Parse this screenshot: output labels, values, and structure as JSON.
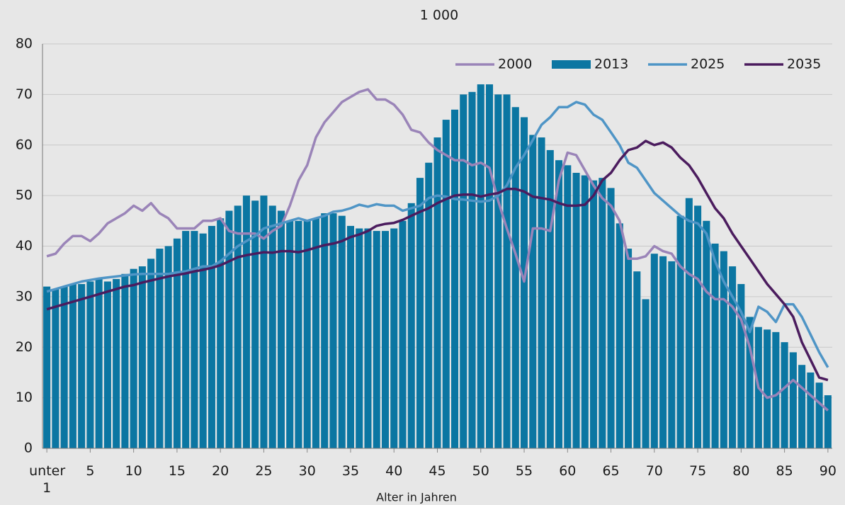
{
  "chart_data": {
    "type": "bar",
    "title": "1 000",
    "x_label": "Alter in Jahren",
    "categories": [
      "unter 1",
      null,
      null,
      null,
      null,
      "5",
      null,
      null,
      null,
      null,
      "10",
      null,
      null,
      null,
      null,
      "15",
      null,
      null,
      null,
      null,
      "20",
      null,
      null,
      null,
      null,
      "25",
      null,
      null,
      null,
      null,
      "30",
      null,
      null,
      null,
      null,
      "35",
      null,
      null,
      null,
      null,
      "40",
      null,
      null,
      null,
      null,
      "45",
      null,
      null,
      null,
      null,
      "50",
      null,
      null,
      null,
      null,
      "55",
      null,
      null,
      null,
      null,
      "60",
      null,
      null,
      null,
      null,
      "65",
      null,
      null,
      null,
      null,
      "70",
      null,
      null,
      null,
      null,
      "75",
      null,
      null,
      null,
      null,
      "80",
      null,
      null,
      null,
      null,
      "85",
      null,
      null,
      null,
      null,
      "90"
    ],
    "series": [
      {
        "name": "2000",
        "type": "line",
        "color": "#9a84b8",
        "values": [
          38,
          38.5,
          40.5,
          42,
          42,
          41,
          42.5,
          44.5,
          45.5,
          46.5,
          48,
          47,
          48.5,
          46.5,
          45.5,
          43.5,
          43.5,
          43.5,
          45,
          45,
          45.5,
          43,
          42.5,
          42.5,
          42.5,
          41.5,
          43,
          44,
          48,
          53,
          56,
          61.5,
          64.5,
          66.5,
          68.5,
          69.5,
          70.5,
          71,
          69,
          69,
          68,
          66,
          63,
          62.5,
          60.5,
          59,
          58,
          57,
          57,
          56,
          56.5,
          55.5,
          49,
          43.5,
          38.5,
          33,
          43.5,
          43.5,
          43,
          53,
          58.5,
          58,
          55,
          52,
          49.5,
          48,
          45,
          37.5,
          37.5,
          38,
          40,
          39,
          38.5,
          36,
          34.5,
          33.5,
          31,
          29.5,
          29.5,
          28,
          25.5,
          20,
          12,
          10,
          10.5,
          12,
          13.5,
          12,
          10.5,
          9,
          7.5
        ]
      },
      {
        "name": "2013",
        "type": "bar",
        "color": "#0b76a2",
        "values": [
          32,
          31.5,
          32,
          32.5,
          32.5,
          33,
          33.5,
          33,
          33.5,
          34.5,
          35.5,
          36,
          37.5,
          39.5,
          40,
          41.5,
          43,
          43,
          42.5,
          44,
          45.5,
          47,
          48,
          50,
          49,
          50,
          48,
          47,
          45,
          45,
          45,
          45.5,
          46.5,
          46.5,
          46,
          44,
          43.5,
          43.5,
          43,
          43,
          43.5,
          45,
          48.5,
          53.5,
          56.5,
          61.5,
          65,
          67,
          70,
          70.5,
          72,
          72,
          70,
          70,
          67.5,
          65.5,
          62,
          61.5,
          59,
          57,
          56,
          54.5,
          54,
          53,
          53.5,
          51.5,
          44.5,
          39.5,
          35,
          29.5,
          38.5,
          38,
          37,
          46,
          49.5,
          48,
          45,
          40.5,
          39,
          36,
          32.5,
          26,
          24,
          23.5,
          23,
          21,
          19,
          16.5,
          15,
          13,
          10.5
        ]
      },
      {
        "name": "2025",
        "type": "line",
        "color": "#4f95c6",
        "values": [
          31,
          31.5,
          32,
          32.5,
          33,
          33.3,
          33.6,
          33.8,
          34,
          34.2,
          34.4,
          34.5,
          34.5,
          34.5,
          34.5,
          34.8,
          35,
          35.5,
          36,
          36,
          37,
          38.5,
          40,
          41,
          42,
          43.5,
          44,
          44.5,
          45,
          45.5,
          45,
          45.5,
          46,
          46.8,
          47,
          47.5,
          48.2,
          47.8,
          48.3,
          48,
          48,
          47,
          47.5,
          48,
          49.5,
          50,
          49.8,
          49.3,
          49.2,
          49,
          48.8,
          49,
          50,
          52,
          55.5,
          58,
          61,
          64,
          65.5,
          67.5,
          67.5,
          68.5,
          68,
          66,
          65,
          62.5,
          60,
          56.5,
          55.5,
          53,
          50.5,
          49,
          47.5,
          46,
          45,
          44.5,
          42.5,
          37,
          33,
          30,
          27,
          23,
          28,
          27,
          25,
          28.5,
          28.5,
          26,
          22.5,
          19,
          16
        ]
      },
      {
        "name": "2035",
        "type": "line",
        "color": "#4b1c5e",
        "values": [
          27.5,
          28,
          28.5,
          29,
          29.5,
          30,
          30.5,
          31,
          31.5,
          32,
          32.3,
          32.8,
          33.2,
          33.6,
          34,
          34.3,
          34.6,
          35,
          35.3,
          35.7,
          36.2,
          37,
          37.8,
          38.2,
          38.5,
          38.8,
          38.7,
          39,
          39,
          38.8,
          39.2,
          39.7,
          40.2,
          40.5,
          41,
          41.8,
          42.3,
          43,
          44,
          44.4,
          44.6,
          45.2,
          46,
          46.8,
          47.5,
          48.5,
          49.3,
          50,
          50.2,
          50.2,
          49.8,
          50.2,
          50.5,
          51.3,
          51.3,
          50.8,
          49.8,
          49.5,
          49.2,
          48.5,
          48,
          48,
          48.2,
          50,
          53,
          54.5,
          57,
          59,
          59.5,
          60.8,
          60,
          60.5,
          59.5,
          57.5,
          56,
          53.5,
          50.5,
          47.5,
          45.5,
          42.5,
          40,
          37.5,
          35,
          32.5,
          30.5,
          28.5,
          26,
          21,
          17.5,
          14,
          13.5
        ]
      }
    ],
    "ylim": [
      0,
      80
    ],
    "yticks": [
      0,
      10,
      20,
      30,
      40,
      50,
      60,
      70,
      80
    ],
    "grid": true,
    "legend": "top-right"
  }
}
